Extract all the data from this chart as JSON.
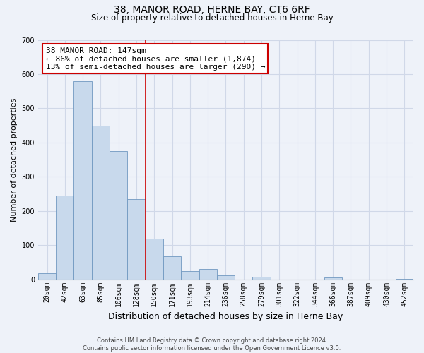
{
  "title": "38, MANOR ROAD, HERNE BAY, CT6 6RF",
  "subtitle": "Size of property relative to detached houses in Herne Bay",
  "xlabel": "Distribution of detached houses by size in Herne Bay",
  "ylabel": "Number of detached properties",
  "bar_labels": [
    "20sqm",
    "42sqm",
    "63sqm",
    "85sqm",
    "106sqm",
    "128sqm",
    "150sqm",
    "171sqm",
    "193sqm",
    "214sqm",
    "236sqm",
    "258sqm",
    "279sqm",
    "301sqm",
    "322sqm",
    "344sqm",
    "366sqm",
    "387sqm",
    "409sqm",
    "430sqm",
    "452sqm"
  ],
  "bar_values": [
    18,
    245,
    580,
    450,
    375,
    235,
    120,
    67,
    25,
    30,
    12,
    0,
    8,
    0,
    0,
    0,
    5,
    0,
    0,
    0,
    2
  ],
  "bar_color": "#c8d9ec",
  "bar_edge_color": "#7098c0",
  "vline_color": "#cc0000",
  "vline_x_index": 6,
  "annotation_title": "38 MANOR ROAD: 147sqm",
  "annotation_line1": "← 86% of detached houses are smaller (1,874)",
  "annotation_line2": "13% of semi-detached houses are larger (290) →",
  "annotation_box_color": "#ffffff",
  "annotation_box_edge": "#cc0000",
  "ylim": [
    0,
    700
  ],
  "yticks": [
    0,
    100,
    200,
    300,
    400,
    500,
    600,
    700
  ],
  "footer_line1": "Contains HM Land Registry data © Crown copyright and database right 2024.",
  "footer_line2": "Contains public sector information licensed under the Open Government Licence v3.0.",
  "bg_color": "#eef2f9",
  "grid_color": "#d0d8e8",
  "title_fontsize": 10,
  "subtitle_fontsize": 8.5,
  "ylabel_fontsize": 8,
  "xlabel_fontsize": 9,
  "tick_fontsize": 7,
  "footer_fontsize": 6,
  "ann_fontsize": 8
}
